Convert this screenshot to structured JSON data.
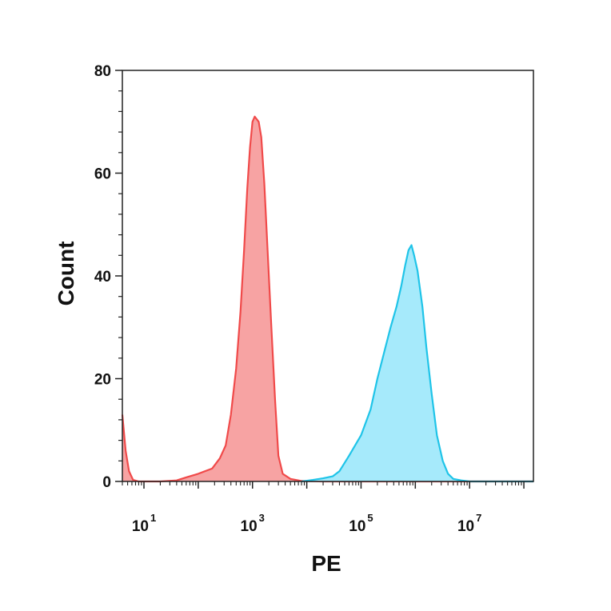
{
  "chart_data": {
    "type": "area",
    "title": "",
    "xlabel": "PE",
    "ylabel": "Count",
    "x_scale": "log",
    "xlim": [
      4,
      150000000
    ],
    "ylim": [
      0,
      80
    ],
    "x_ticks": [
      {
        "value": 10,
        "base": "10",
        "exp": "1"
      },
      {
        "value": 1000,
        "base": "10",
        "exp": "3"
      },
      {
        "value": 100000,
        "base": "10",
        "exp": "5"
      },
      {
        "value": 10000000,
        "base": "10",
        "exp": "7"
      }
    ],
    "y_ticks": [
      {
        "value": 0,
        "label": "0"
      },
      {
        "value": 20,
        "label": "20"
      },
      {
        "value": 40,
        "label": "40"
      },
      {
        "value": 60,
        "label": "60"
      },
      {
        "value": 80,
        "label": "80"
      }
    ],
    "grid": false,
    "legend": "none",
    "series": [
      {
        "color": "#f04a4a",
        "fill": "#f7a3a3",
        "points": [
          [
            4,
            13
          ],
          [
            4.6,
            6
          ],
          [
            5.3,
            2
          ],
          [
            6.3,
            0.3
          ],
          [
            8,
            0
          ],
          [
            20,
            0
          ],
          [
            40,
            0.2
          ],
          [
            60,
            0.8
          ],
          [
            100,
            1.5
          ],
          [
            180,
            2.5
          ],
          [
            250,
            4.5
          ],
          [
            320,
            7
          ],
          [
            400,
            13
          ],
          [
            500,
            22
          ],
          [
            600,
            33
          ],
          [
            700,
            45
          ],
          [
            800,
            57
          ],
          [
            900,
            65
          ],
          [
            1000,
            70
          ],
          [
            1100,
            71
          ],
          [
            1300,
            70
          ],
          [
            1450,
            67
          ],
          [
            1650,
            58
          ],
          [
            1900,
            45
          ],
          [
            2200,
            31
          ],
          [
            2600,
            16
          ],
          [
            3000,
            5
          ],
          [
            3600,
            1.5
          ],
          [
            5000,
            0.5
          ],
          [
            8000,
            0.1
          ],
          [
            20000,
            0
          ],
          [
            1000000,
            0
          ],
          [
            10000000,
            0
          ],
          [
            150000000,
            0
          ]
        ]
      },
      {
        "color": "#1fc4e8",
        "fill": "#a6eafb",
        "points": [
          [
            8000,
            0
          ],
          [
            13000,
            0.3
          ],
          [
            20000,
            0.6
          ],
          [
            30000,
            1
          ],
          [
            40000,
            2
          ],
          [
            60000,
            5
          ],
          [
            100000,
            9
          ],
          [
            150000,
            14
          ],
          [
            200000,
            20
          ],
          [
            280000,
            26
          ],
          [
            350000,
            30
          ],
          [
            450000,
            34
          ],
          [
            550000,
            38
          ],
          [
            650000,
            42
          ],
          [
            750000,
            45
          ],
          [
            850000,
            46
          ],
          [
            950000,
            44
          ],
          [
            1100000,
            41
          ],
          [
            1350000,
            34
          ],
          [
            1600000,
            26
          ],
          [
            2000000,
            17
          ],
          [
            2500000,
            9
          ],
          [
            3200000,
            4
          ],
          [
            4000000,
            1.5
          ],
          [
            5000000,
            0.5
          ],
          [
            7000000,
            0.2
          ],
          [
            10000000,
            0
          ],
          [
            150000000,
            0
          ]
        ]
      }
    ]
  }
}
